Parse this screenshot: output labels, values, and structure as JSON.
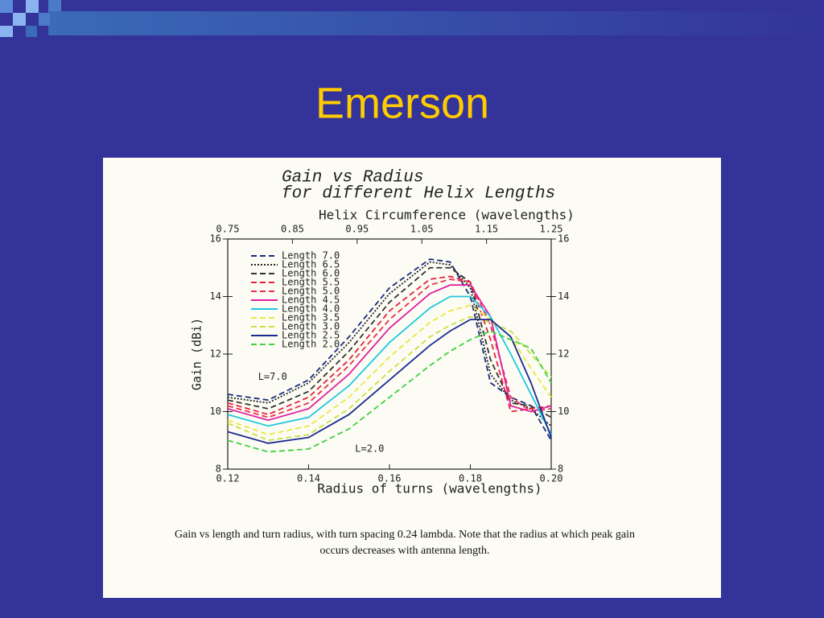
{
  "slide_title": "Emerson",
  "chart_data": {
    "type": "line",
    "title": [
      "Gain vs Radius",
      "for different Helix Lengths"
    ],
    "x2_label": "Helix Circumference (wavelengths)",
    "y_label": "Gain (dBi)",
    "x_label": "Radius of turns (wavelengths)",
    "x": [
      0.12,
      0.13,
      0.14,
      0.15,
      0.16,
      0.17,
      0.175,
      0.18,
      0.185,
      0.19,
      0.195,
      0.2
    ],
    "xlim": [
      0.12,
      0.2
    ],
    "xticks": [
      0.12,
      0.14,
      0.16,
      0.18,
      {
        "value": 0.2,
        "label": "0.20"
      }
    ],
    "x2lim": [
      0.75,
      1.25
    ],
    "x2ticks": [
      0.75,
      0.85,
      0.95,
      1.05,
      1.15,
      1.25
    ],
    "ylim": [
      8,
      16
    ],
    "yticks": [
      8,
      10,
      12,
      14,
      16
    ],
    "series": [
      {
        "name": "Length 7.0",
        "color": "#1a2a80",
        "dash": "dashed",
        "values": [
          10.6,
          10.4,
          11.1,
          12.6,
          14.3,
          15.3,
          15.2,
          14.0,
          11.0,
          10.5,
          10.2,
          9.0
        ]
      },
      {
        "name": "Length 6.5",
        "color": "#222222",
        "dash": "dotted",
        "values": [
          10.5,
          10.3,
          11.0,
          12.4,
          14.1,
          15.2,
          15.1,
          14.3,
          11.3,
          10.4,
          10.1,
          9.5
        ]
      },
      {
        "name": "Length 6.0",
        "color": "#333333",
        "dash": "dashed",
        "values": [
          10.4,
          10.1,
          10.7,
          12.1,
          13.8,
          15.0,
          15.0,
          14.5,
          11.8,
          10.3,
          10.2,
          9.8
        ]
      },
      {
        "name": "Length 5.5",
        "color": "#e8203a",
        "dash": "dashed",
        "values": [
          10.3,
          9.9,
          10.5,
          11.8,
          13.5,
          14.6,
          14.7,
          14.5,
          12.5,
          10.0,
          10.1,
          10.2
        ]
      },
      {
        "name": "Length 5.0",
        "color": "#e83050",
        "dash": "dashed",
        "values": [
          10.2,
          9.8,
          10.3,
          11.6,
          13.2,
          14.4,
          14.6,
          14.5,
          13.0,
          10.5,
          10.0,
          10.1
        ]
      },
      {
        "name": "Length 4.5",
        "color": "#e020a0",
        "dash": "solid",
        "values": [
          10.1,
          9.7,
          10.1,
          11.3,
          12.9,
          14.1,
          14.4,
          14.4,
          13.3,
          10.2,
          10.0,
          10.2
        ]
      },
      {
        "name": "Length 4.0",
        "color": "#20c8e0",
        "dash": "solid",
        "values": [
          9.9,
          9.5,
          9.8,
          10.9,
          12.4,
          13.6,
          14.0,
          14.0,
          13.3,
          12.0,
          10.6,
          9.2
        ]
      },
      {
        "name": "Length 3.5",
        "color": "#e8e840",
        "dash": "dashed",
        "values": [
          9.7,
          9.2,
          9.5,
          10.5,
          11.9,
          13.1,
          13.5,
          13.7,
          13.2,
          12.6,
          11.5,
          10.5
        ]
      },
      {
        "name": "Length 3.0",
        "color": "#c8e040",
        "dash": "dashed",
        "values": [
          9.6,
          9.0,
          9.2,
          10.1,
          11.4,
          12.6,
          13.0,
          13.3,
          13.1,
          12.8,
          12.0,
          11.2
        ]
      },
      {
        "name": "Length 2.5",
        "color": "#1a2a90",
        "dash": "solid",
        "values": [
          9.3,
          8.9,
          9.1,
          9.9,
          11.1,
          12.3,
          12.8,
          13.2,
          13.2,
          12.6,
          11.0,
          9.1
        ]
      },
      {
        "name": "Length 2.0",
        "color": "#40d040",
        "dash": "dashed",
        "values": [
          9.0,
          8.6,
          8.7,
          9.4,
          10.5,
          11.6,
          12.1,
          12.5,
          12.8,
          12.5,
          12.2,
          11.0
        ]
      }
    ],
    "annotations": [
      {
        "text": "L=7.0",
        "x": 0.1275,
        "y": 11.2,
        "color": "#1a2a80"
      },
      {
        "text": "L=2.0",
        "x": 0.1515,
        "y": 8.7,
        "color": "#40d040"
      }
    ],
    "caption": [
      "Gain vs length and turn radius, with turn spacing 0.24 lambda. Note that the radius at which peak gain",
      "occurs decreases with antenna length."
    ]
  }
}
